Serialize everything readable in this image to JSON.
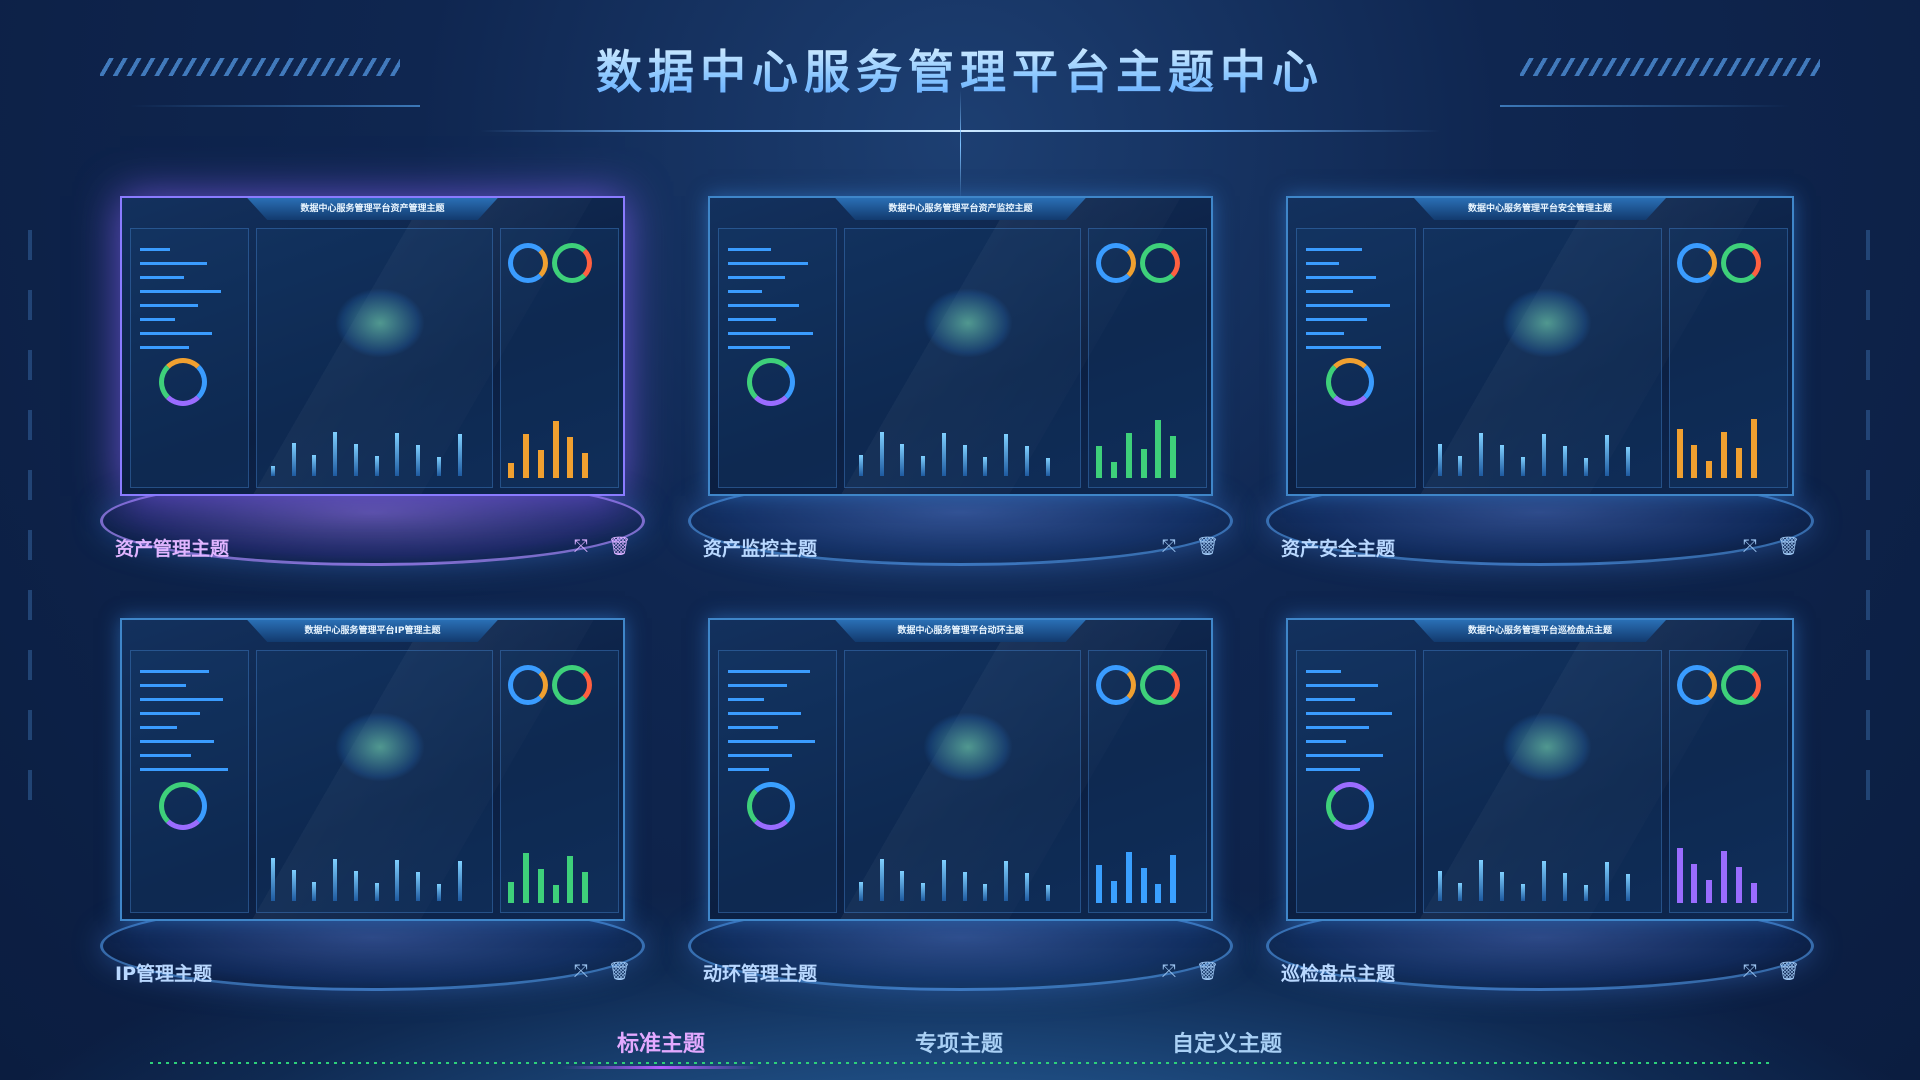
{
  "header": {
    "title": "数据中心服务管理平台主题中心"
  },
  "cards": [
    {
      "label": "资产管理主题",
      "mini_title": "数据中心服务管理平台资产管理主题",
      "active": true,
      "accent": "#f0a030"
    },
    {
      "label": "资产监控主题",
      "mini_title": "数据中心服务管理平台资产监控主题",
      "active": false,
      "accent": "#3ed07a"
    },
    {
      "label": "资产安全主题",
      "mini_title": "数据中心服务管理平台安全管理主题",
      "active": false,
      "accent": "#f0a030"
    },
    {
      "label": "IP管理主题",
      "mini_title": "数据中心服务管理平台IP管理主题",
      "active": false,
      "accent": "#3ed07a"
    },
    {
      "label": "动环管理主题",
      "mini_title": "数据中心服务管理平台动环主题",
      "active": false,
      "accent": "#3aa0ff"
    },
    {
      "label": "巡检盘点主题",
      "mini_title": "数据中心服务管理平台巡检盘点主题",
      "active": false,
      "accent": "#9a6cff"
    }
  ],
  "card_icons": {
    "expand": "expand-icon",
    "delete": "trash-icon"
  },
  "tabs": [
    {
      "label": "标准主题",
      "active": true
    },
    {
      "label": "专项主题",
      "active": false
    },
    {
      "label": "自定义主题",
      "active": false
    }
  ],
  "colors": {
    "active": "#d9a8ff",
    "text": "#b9d8ff",
    "accent": "#3a9cff"
  }
}
